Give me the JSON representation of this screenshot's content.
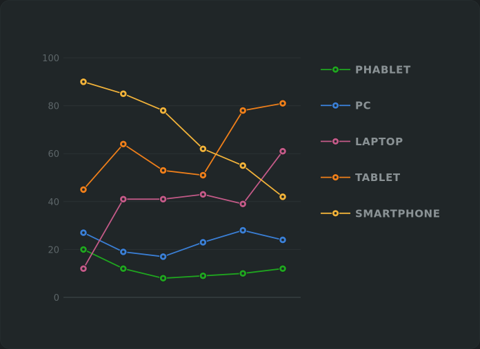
{
  "chart_data": {
    "type": "line",
    "title": "",
    "xlabel": "",
    "ylabel": "",
    "x": [
      1,
      2,
      3,
      4,
      5,
      6
    ],
    "ylim": [
      0,
      100
    ],
    "yticks": [
      0,
      20,
      40,
      60,
      80,
      100
    ],
    "grid": true,
    "legend_position": "right",
    "series": [
      {
        "name": "PHABLET",
        "color": "#1fa61f",
        "values": [
          20,
          12,
          8,
          9,
          10,
          12
        ]
      },
      {
        "name": "PC",
        "color": "#3a7fd6",
        "values": [
          27,
          19,
          17,
          23,
          28,
          24
        ]
      },
      {
        "name": "LAPTOP",
        "color": "#c45a88",
        "values": [
          12,
          41,
          41,
          43,
          39,
          61
        ]
      },
      {
        "name": "TABLET",
        "color": "#ef7f1a",
        "values": [
          45,
          64,
          53,
          51,
          78,
          81
        ]
      },
      {
        "name": "SMARTPHONE",
        "color": "#f2b33a",
        "values": [
          90,
          85,
          78,
          62,
          55,
          42
        ]
      }
    ]
  }
}
